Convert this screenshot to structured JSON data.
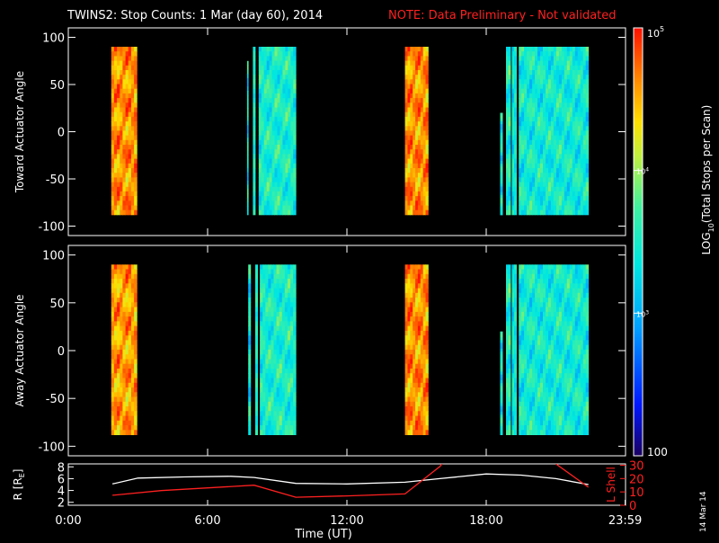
{
  "header": {
    "title": "TWINS2: Stop Counts:  1 Mar (day  60), 2014",
    "note": "NOTE: Data Preliminary - Not validated",
    "title_color": "#ffffff",
    "note_color": "#ff2020"
  },
  "stamp": "14 Mar 14",
  "chart_data": [
    {
      "type": "heatmap",
      "panel": "toward",
      "ylabel": "Toward Actuator Angle",
      "ylim": [
        -110,
        110
      ],
      "yticks": [
        100,
        50,
        0,
        -50,
        -100
      ],
      "xlim_hours": [
        0,
        24
      ],
      "angle_range": [
        -88,
        90
      ],
      "blocks": [
        {
          "start": 1.85,
          "end": 2.95,
          "base": 4.6
        },
        {
          "start": 7.7,
          "end": 7.75,
          "base": 3.4,
          "angle_top": 75
        },
        {
          "start": 7.95,
          "end": 8.05,
          "base": 3.5
        },
        {
          "start": 8.2,
          "end": 9.8,
          "base": 3.5
        },
        {
          "start": 14.5,
          "end": 15.5,
          "base": 4.6
        },
        {
          "start": 18.6,
          "end": 18.7,
          "base": 3.4,
          "angle_top": 20
        },
        {
          "start": 18.85,
          "end": 19.05,
          "base": 3.5
        },
        {
          "start": 19.1,
          "end": 19.3,
          "base": 3.4
        },
        {
          "start": 19.4,
          "end": 22.4,
          "base": 3.45
        }
      ]
    },
    {
      "type": "heatmap",
      "panel": "away",
      "ylabel": "Away Actuator Angle",
      "ylim": [
        -110,
        110
      ],
      "yticks": [
        100,
        50,
        0,
        -50,
        -100
      ],
      "xlim_hours": [
        0,
        24
      ],
      "angle_range": [
        -88,
        90
      ],
      "blocks": [
        {
          "start": 1.85,
          "end": 2.95,
          "base": 4.55
        },
        {
          "start": 7.75,
          "end": 7.85,
          "base": 3.4
        },
        {
          "start": 8.05,
          "end": 8.15,
          "base": 3.5
        },
        {
          "start": 8.25,
          "end": 9.8,
          "base": 3.5
        },
        {
          "start": 14.5,
          "end": 15.5,
          "base": 4.6
        },
        {
          "start": 18.6,
          "end": 18.7,
          "base": 3.4,
          "angle_top": 20
        },
        {
          "start": 18.85,
          "end": 19.05,
          "base": 3.5
        },
        {
          "start": 19.1,
          "end": 19.3,
          "base": 3.4
        },
        {
          "start": 19.4,
          "end": 22.4,
          "base": 3.45
        }
      ]
    },
    {
      "type": "line",
      "panel": "orbit",
      "xlabel": "Time (UT)",
      "xticks": [
        "0:00",
        "6:00",
        "12:00",
        "18:00",
        "23:59"
      ],
      "xtick_hours": [
        0,
        6,
        12,
        18,
        23.983
      ],
      "y_left_label": "R [R",
      "y_left_label_sub": "E",
      "y_left_label_end": "]",
      "y_left_ticks": [
        2,
        4,
        6,
        8
      ],
      "y_left_lim": [
        1.5,
        8.5
      ],
      "y_right_label": "L Shell",
      "y_right_ticks": [
        0,
        10,
        20,
        30
      ],
      "y_right_lim": [
        0,
        31
      ],
      "series": [
        {
          "axis": "left",
          "color": "#ffffff",
          "x": [
            1.9,
            3.0,
            5.0,
            7.0,
            8.0,
            9.8,
            12.0,
            14.5,
            16.0,
            18.0,
            19.5,
            21.0,
            22.4
          ],
          "values": [
            5.1,
            6.1,
            6.3,
            6.4,
            6.2,
            5.2,
            5.1,
            5.4,
            6.0,
            6.8,
            6.6,
            6.0,
            5.0
          ]
        },
        {
          "axis": "right",
          "color": "#ff2020",
          "x": [
            1.9,
            4.0,
            8.0,
            9.8,
            12.0,
            14.5,
            16.0,
            16.1
          ],
          "values": [
            7.5,
            11.0,
            15.0,
            6.0,
            7.0,
            8.5,
            29.0,
            31.0
          ]
        },
        {
          "axis": "right",
          "color": "#ff2020",
          "x": [
            21.0,
            22.4
          ],
          "values": [
            31.0,
            13.5
          ]
        }
      ]
    }
  ],
  "colorbar": {
    "label": "LOG",
    "label_sub": "10",
    "label_rest": "(Total Stops per Scan)",
    "log_min": 2,
    "log_max": 5,
    "top_label": "10",
    "top_label_exp": "5",
    "bottom_label": "100",
    "mid_labels": [
      {
        "value": 4,
        "text": "10",
        "exp": "4"
      },
      {
        "value": 3,
        "text": "10",
        "exp": "3"
      }
    ]
  }
}
